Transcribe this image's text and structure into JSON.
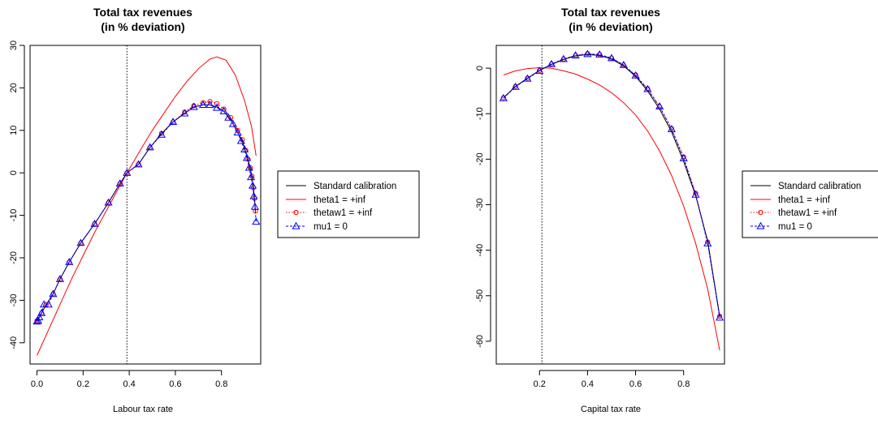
{
  "series_styles": {
    "standard": {
      "color": "#000000"
    },
    "theta1": {
      "color": "#ff0000"
    },
    "thetaw1": {
      "color": "#ff0000",
      "marker": "circle"
    },
    "mu1": {
      "color": "#0000ff",
      "marker": "triangle"
    }
  },
  "chart_data": [
    {
      "type": "line",
      "title": "Total tax revenues",
      "subtitle": "(in % deviation)",
      "xlabel": "Labour tax rate",
      "ylabel": "",
      "xlim": [
        -0.03,
        0.97
      ],
      "ylim": [
        -45,
        30
      ],
      "xticks": [
        "0.0",
        "0.2",
        "0.4",
        "0.6",
        "0.8"
      ],
      "yticks": [
        "-40",
        "-30",
        "-20",
        "-10",
        "0",
        "10",
        "20",
        "30"
      ],
      "vline_x": 0.39,
      "grid": false,
      "legend_position": "right",
      "legend": [
        "Standard calibration",
        "theta1 = +inf",
        "thetaw1 = +inf",
        "mu1 = 0"
      ],
      "series": [
        {
          "key": "standard",
          "x": [
            0.0,
            0.02,
            0.04,
            0.07,
            0.1,
            0.14,
            0.19,
            0.25,
            0.31,
            0.36,
            0.39,
            0.44,
            0.49,
            0.54,
            0.59,
            0.64,
            0.68,
            0.72,
            0.75,
            0.78,
            0.81,
            0.84,
            0.87,
            0.89,
            0.905,
            0.915,
            0.925,
            0.932,
            0.938,
            0.943,
            0.947
          ],
          "y": [
            -35,
            -33,
            -31,
            -28.5,
            -25,
            -21,
            -16.5,
            -12,
            -7,
            -2.5,
            0,
            2,
            6,
            9.2,
            12,
            14,
            15.5,
            16,
            16,
            15.5,
            14.5,
            12.5,
            9.5,
            7.5,
            5,
            3,
            1,
            -1,
            -3.5,
            -6,
            -9
          ]
        },
        {
          "key": "theta1",
          "x": [
            0.0,
            0.05,
            0.1,
            0.15,
            0.2,
            0.25,
            0.3,
            0.35,
            0.39,
            0.45,
            0.5,
            0.55,
            0.6,
            0.65,
            0.7,
            0.75,
            0.78,
            0.82,
            0.86,
            0.9,
            0.93,
            0.95
          ],
          "y": [
            -43,
            -37,
            -31,
            -25,
            -19.5,
            -14,
            -9,
            -4,
            0,
            5.5,
            10,
            14,
            18,
            21.5,
            24.5,
            26.8,
            27.3,
            26.5,
            23,
            17,
            11,
            4
          ]
        },
        {
          "key": "thetaw1",
          "x": [
            0.0,
            0.02,
            0.04,
            0.07,
            0.1,
            0.14,
            0.19,
            0.25,
            0.31,
            0.36,
            0.39,
            0.44,
            0.49,
            0.54,
            0.59,
            0.64,
            0.68,
            0.72,
            0.75,
            0.78,
            0.81,
            0.84,
            0.87,
            0.89,
            0.905,
            0.915,
            0.925,
            0.932,
            0.938,
            0.943,
            0.947
          ],
          "y": [
            -34.8,
            -33,
            -31,
            -28.5,
            -25,
            -21,
            -16.5,
            -12,
            -7,
            -2.5,
            0,
            2,
            6,
            9.3,
            12,
            14.3,
            15.8,
            16.5,
            16.8,
            16.3,
            15,
            13,
            10,
            7.8,
            5.3,
            3.2,
            1.2,
            -0.8,
            -3.5,
            -6,
            -9
          ]
        },
        {
          "key": "mu1",
          "x": [
            0.0,
            0.005,
            0.01,
            0.02,
            0.03,
            0.05,
            0.07,
            0.1,
            0.14,
            0.19,
            0.25,
            0.31,
            0.36,
            0.39,
            0.44,
            0.49,
            0.54,
            0.59,
            0.64,
            0.68,
            0.72,
            0.75,
            0.78,
            0.81,
            0.83,
            0.85,
            0.87,
            0.885,
            0.9,
            0.91,
            0.92,
            0.928,
            0.935,
            0.94,
            0.945,
            0.95
          ],
          "y": [
            -35,
            -34.8,
            -34,
            -33,
            -31,
            -31,
            -28.5,
            -25,
            -21,
            -16.5,
            -12,
            -7,
            -2.5,
            0,
            2,
            6,
            9,
            12,
            14,
            15.5,
            16,
            16,
            15.3,
            14.5,
            13,
            11.5,
            9.5,
            7.5,
            5.5,
            3.5,
            1.2,
            -1,
            -3,
            -5.5,
            -8,
            -11.5
          ]
        }
      ]
    },
    {
      "type": "line",
      "title": "Total tax revenues",
      "subtitle": "(in % deviation)",
      "xlabel": "Capital tax rate",
      "ylabel": "",
      "xlim": [
        0.02,
        0.97
      ],
      "ylim": [
        -65,
        5
      ],
      "xticks": [
        "0.2",
        "0.4",
        "0.6",
        "0.8"
      ],
      "yticks": [
        "-60",
        "-50",
        "-40",
        "-30",
        "-20",
        "-10",
        "0"
      ],
      "vline_x": 0.21,
      "grid": false,
      "legend_position": "right",
      "legend": [
        "Standard calibration",
        "theta1 = +inf",
        "thetaw1 = +inf",
        "mu1 = 0"
      ],
      "series": [
        {
          "key": "standard",
          "x": [
            0.05,
            0.1,
            0.15,
            0.2,
            0.25,
            0.3,
            0.35,
            0.4,
            0.45,
            0.5,
            0.55,
            0.6,
            0.65,
            0.7,
            0.75,
            0.8,
            0.85,
            0.9,
            0.95
          ],
          "y": [
            -6.5,
            -4,
            -2.2,
            -0.5,
            0.8,
            1.9,
            2.7,
            3.0,
            2.8,
            2.0,
            0.5,
            -1.8,
            -5,
            -9,
            -14,
            -20.5,
            -28,
            -38,
            -54.5
          ]
        },
        {
          "key": "theta1",
          "x": [
            0.05,
            0.1,
            0.15,
            0.2,
            0.25,
            0.3,
            0.35,
            0.4,
            0.45,
            0.5,
            0.55,
            0.6,
            0.65,
            0.7,
            0.75,
            0.8,
            0.85,
            0.9,
            0.95
          ],
          "y": [
            -1.5,
            -0.6,
            -0.1,
            0.1,
            0.0,
            -0.6,
            -1.3,
            -2.4,
            -3.7,
            -5.4,
            -7.6,
            -10.3,
            -13.8,
            -18.2,
            -23.6,
            -30.3,
            -38.5,
            -48.5,
            -62
          ]
        },
        {
          "key": "thetaw1",
          "x": [
            0.05,
            0.1,
            0.15,
            0.2,
            0.25,
            0.3,
            0.35,
            0.4,
            0.45,
            0.5,
            0.55,
            0.6,
            0.65,
            0.7,
            0.75,
            0.8,
            0.85,
            0.9,
            0.95
          ],
          "y": [
            -6.5,
            -4,
            -2.2,
            -0.5,
            0.9,
            2.0,
            2.8,
            3.2,
            3.0,
            2.2,
            0.7,
            -1.5,
            -4.5,
            -8.5,
            -13.3,
            -19.5,
            -27.5,
            -38.2,
            -54.5
          ]
        },
        {
          "key": "mu1",
          "x": [
            0.05,
            0.1,
            0.15,
            0.2,
            0.25,
            0.3,
            0.35,
            0.4,
            0.45,
            0.5,
            0.55,
            0.6,
            0.65,
            0.7,
            0.75,
            0.8,
            0.85,
            0.9,
            0.95
          ],
          "y": [
            -6.6,
            -4.1,
            -2.3,
            -0.6,
            0.9,
            2.0,
            2.8,
            3.1,
            3.0,
            2.2,
            0.7,
            -1.6,
            -4.6,
            -8.4,
            -13.4,
            -19.8,
            -27.8,
            -38.5,
            -54.8
          ]
        }
      ]
    }
  ]
}
